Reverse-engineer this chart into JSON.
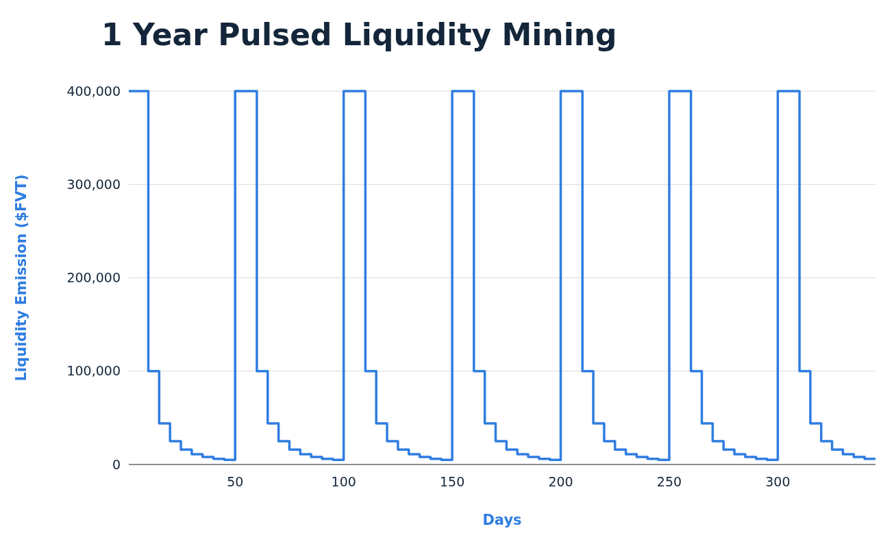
{
  "chart_data": {
    "type": "step",
    "title": "1 Year Pulsed Liquidity Mining",
    "xlabel": "Days",
    "ylabel": "Liquidity Emission ($FVT)",
    "xlim": [
      1,
      345
    ],
    "xticks": [
      50,
      100,
      150,
      200,
      250,
      300
    ],
    "ylim": [
      0,
      400000
    ],
    "yticks": [
      {
        "value": 0,
        "label": "0"
      },
      {
        "value": 100000,
        "label": "100,000"
      },
      {
        "value": 200000,
        "label": "200,000"
      },
      {
        "value": 300000,
        "label": "300,000"
      },
      {
        "value": 400000,
        "label": "400,000"
      }
    ],
    "grid": "y",
    "series": [
      {
        "color": "#2f7de1",
        "x": [
          1,
          10,
          15,
          20,
          25,
          30,
          35,
          40,
          45,
          50,
          60,
          65,
          70,
          75,
          80,
          85,
          90,
          95,
          100,
          110,
          115,
          120,
          125,
          130,
          135,
          140,
          145,
          150,
          160,
          165,
          170,
          175,
          180,
          185,
          190,
          195,
          200,
          210,
          215,
          220,
          225,
          230,
          235,
          240,
          245,
          250,
          260,
          265,
          270,
          275,
          280,
          285,
          290,
          295,
          300,
          310,
          315,
          320,
          325,
          330,
          335,
          340,
          345
        ],
        "values": [
          400000,
          100000,
          44000,
          25000,
          16000,
          11000,
          8000,
          6000,
          5000,
          400000,
          100000,
          44000,
          25000,
          16000,
          11000,
          8000,
          6000,
          5000,
          400000,
          100000,
          44000,
          25000,
          16000,
          11000,
          8000,
          6000,
          5000,
          400000,
          100000,
          44000,
          25000,
          16000,
          11000,
          8000,
          6000,
          5000,
          400000,
          100000,
          44000,
          25000,
          16000,
          11000,
          8000,
          6000,
          5000,
          400000,
          100000,
          44000,
          25000,
          16000,
          11000,
          8000,
          6000,
          5000,
          400000,
          100000,
          44000,
          25000,
          16000,
          11000,
          8000,
          6000,
          6000
        ]
      }
    ]
  }
}
